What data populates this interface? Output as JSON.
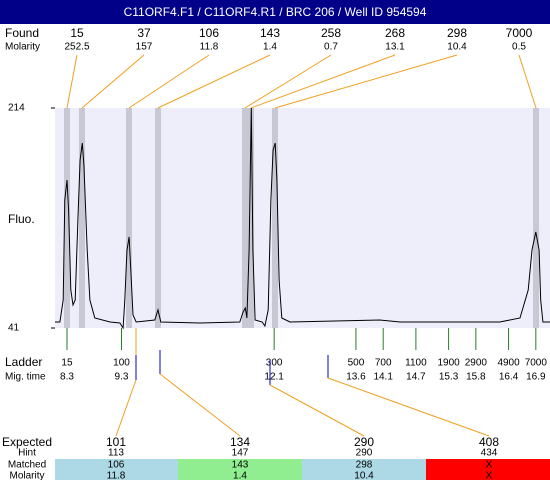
{
  "chart_data": {
    "type": "line",
    "title": "C11ORF4.F1 / C11ORF4.R1 / BRC 206 / Well ID 954594",
    "ylabel": "Fluo.",
    "ylim": [
      41,
      214
    ],
    "yticks": [
      41,
      214
    ],
    "xlim": [
      8.08,
      17.16
    ],
    "color": "#000000",
    "x": [
      8.08,
      8.17,
      8.23,
      8.26,
      8.3,
      8.33,
      8.37,
      8.41,
      8.45,
      8.5,
      8.54,
      8.58,
      8.61,
      8.67,
      8.72,
      8.81,
      9.09,
      9.27,
      9.33,
      9.36,
      9.4,
      9.44,
      9.47,
      9.51,
      9.57,
      9.91,
      9.97,
      10.02,
      10.74,
      11.47,
      11.53,
      11.57,
      11.6,
      11.64,
      11.68,
      11.71,
      11.75,
      11.88,
      11.93,
      11.99,
      12.04,
      12.08,
      12.12,
      12.15,
      12.19,
      12.24,
      12.39,
      14.04,
      14.41,
      16.24,
      16.61,
      16.76,
      16.83,
      16.9,
      16.96,
      16.99,
      17.03,
      17.16
    ],
    "values": [
      45.7,
      45.7,
      63,
      141.7,
      157.4,
      133.8,
      70.9,
      59.1,
      63,
      126,
      173.1,
      186.5,
      169.2,
      102.3,
      63,
      48.9,
      45.7,
      44.9,
      41,
      63,
      102.3,
      112.6,
      86.6,
      51.2,
      45.7,
      47.3,
      55.2,
      45.7,
      44.9,
      45.7,
      53.6,
      56.7,
      48.9,
      102.3,
      214,
      102.3,
      47.3,
      45.7,
      42.6,
      55.2,
      141.7,
      181,
      186.5,
      157.4,
      78.8,
      48.9,
      45.7,
      47.3,
      45.7,
      45.7,
      48.9,
      70.9,
      102.3,
      116.5,
      102.3,
      63,
      45.7,
      45.7
    ],
    "found": {
      "label": "Found",
      "molarity_label": "Molarity",
      "sizes": [
        15,
        37,
        106,
        143,
        258,
        268,
        298,
        7000
      ],
      "molarity": [
        252.5,
        157,
        11.8,
        1.4,
        0.7,
        13.1,
        10.4,
        0.5
      ]
    },
    "ladder": {
      "label": "Ladder",
      "time_label": "Mig. time",
      "sizes": [
        15,
        100,
        300,
        500,
        700,
        1100,
        1900,
        2900,
        4900,
        7000
      ],
      "times": [
        8.3,
        9.3,
        12.1,
        13.6,
        14.1,
        14.7,
        15.3,
        15.8,
        16.4,
        16.9
      ]
    },
    "expected": {
      "labels": [
        "Expected",
        "Hint",
        "Matched",
        "Molarity"
      ],
      "expected": [
        101,
        134,
        290,
        408
      ],
      "hint": [
        113,
        147,
        290,
        434
      ],
      "matched": [
        106,
        143,
        298,
        "X"
      ],
      "molarity": [
        11.8,
        1.4,
        10.4,
        "X"
      ]
    }
  }
}
